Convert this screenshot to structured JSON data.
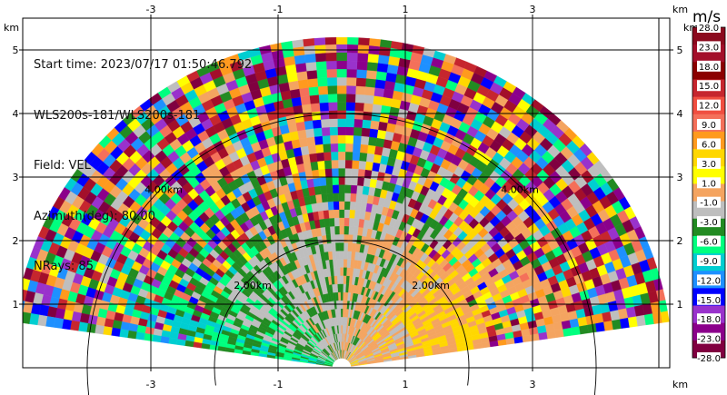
{
  "info": {
    "start_time": "Start time: 2023/07/17 01:50:46.792",
    "instrument": "WLS200s-181/WLS200s-181",
    "field": "Field: VEL",
    "azimuth": "Azimuth(deg): 80.00",
    "nrays": "NRays: 85"
  },
  "chart_data": {
    "type": "ppi",
    "field": "VEL",
    "azimuth_deg": 80.0,
    "nrays": 85,
    "x_unit": "km",
    "y_unit": "km",
    "xlim": [
      -5.0,
      5.0
    ],
    "ylim": [
      0.0,
      5.5
    ],
    "x_ticks": [
      -3,
      -1,
      1,
      3
    ],
    "y_ticks": [
      1,
      2,
      3,
      4,
      5
    ],
    "range_rings_km": [
      2.0,
      4.0
    ],
    "range_ring_labels": [
      "2.00km",
      "2.00km",
      "4.00km",
      "4.00km"
    ],
    "max_range_km": 5.2,
    "grid": true,
    "colorbar": {
      "title": "m/s",
      "tick_labels": [
        "28.0",
        "23.0",
        "18.0",
        "15.0",
        "12.0",
        "9.0",
        "6.0",
        "3.0",
        "1.0",
        "-1.0",
        "-3.0",
        "-6.0",
        "-9.0",
        "-12.0",
        "-15.0",
        "-18.0",
        "-23.0",
        "-28.0"
      ],
      "colors": [
        "#8b0a1e",
        "#a30f2a",
        "#8b0000",
        "#c6262e",
        "#f04e40",
        "#f4705a",
        "#ff9a1e",
        "#ffd700",
        "#ffff00",
        "#f4a460",
        "#bebebe",
        "#228b22",
        "#00ff7f",
        "#00ced1",
        "#1e90ff",
        "#0000ff",
        "#9932cc",
        "#8b008b",
        "#800040"
      ]
    }
  }
}
